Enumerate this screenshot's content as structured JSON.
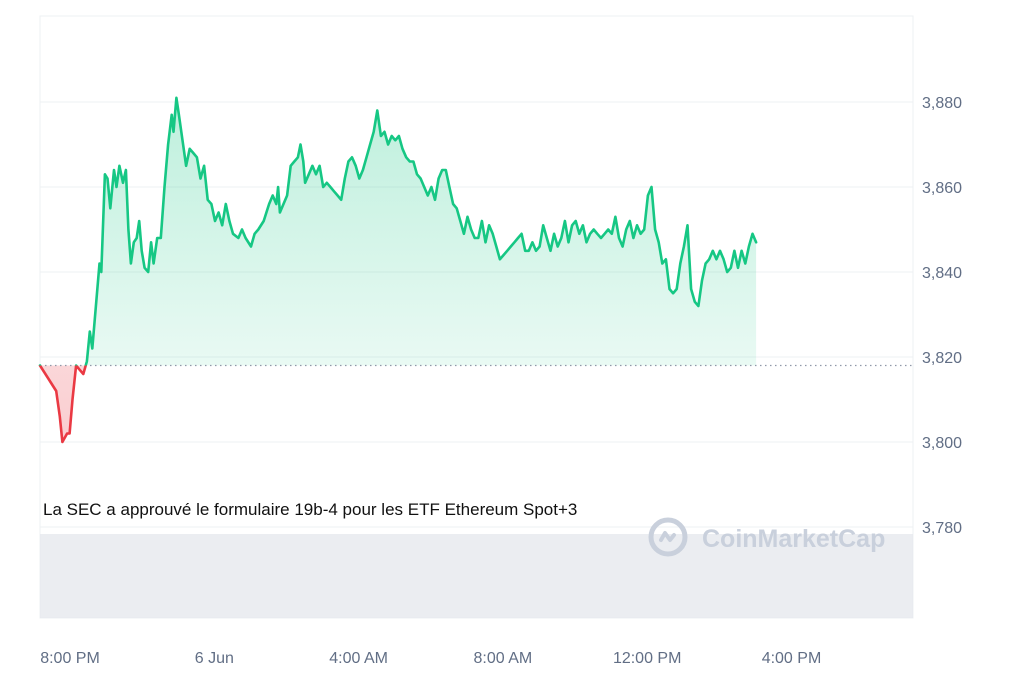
{
  "chart_data": {
    "type": "area",
    "reference_line": 3818,
    "ylim": [
      3760,
      3900
    ],
    "grid": true,
    "y_ticks": [
      "3,880",
      "3,860",
      "3,840",
      "3,820",
      "3,800",
      "3,780"
    ],
    "y_tick_values": [
      3880,
      3860,
      3840,
      3820,
      3800,
      3780
    ],
    "x_ticks": [
      "8:00 PM",
      "6 Jun",
      "4:00 AM",
      "8:00 AM",
      "12:00 PM",
      "4:00 PM"
    ],
    "x_tick_hours": [
      0,
      4,
      8,
      12,
      16,
      20
    ],
    "xlim_hours": [
      0,
      24.2
    ],
    "annotation": "La SEC a approuvé le formulaire 19b-4 pour les ETF Ethereum Spot+3",
    "watermark": "CoinMarketCap",
    "colors": {
      "up": "#16c784",
      "down": "#ea3943",
      "grid": "#eef0f3",
      "volume": "#e4e7ec"
    },
    "series": [
      {
        "values": [
          [
            0.0,
            3818
          ],
          [
            0.3,
            3814
          ],
          [
            0.45,
            3812
          ],
          [
            0.55,
            3806
          ],
          [
            0.62,
            3800
          ],
          [
            0.75,
            3802
          ],
          [
            0.82,
            3802
          ],
          [
            0.9,
            3810
          ],
          [
            1.0,
            3818
          ],
          [
            1.1,
            3817
          ],
          [
            1.2,
            3816
          ],
          [
            1.3,
            3819
          ],
          [
            1.38,
            3826
          ],
          [
            1.45,
            3822
          ],
          [
            1.55,
            3832
          ],
          [
            1.65,
            3842
          ],
          [
            1.7,
            3840
          ],
          [
            1.8,
            3863
          ],
          [
            1.87,
            3862
          ],
          [
            1.95,
            3855
          ],
          [
            2.05,
            3864
          ],
          [
            2.12,
            3860
          ],
          [
            2.2,
            3865
          ],
          [
            2.3,
            3861
          ],
          [
            2.38,
            3864
          ],
          [
            2.45,
            3850
          ],
          [
            2.52,
            3842
          ],
          [
            2.6,
            3847
          ],
          [
            2.68,
            3848
          ],
          [
            2.75,
            3852
          ],
          [
            2.82,
            3845
          ],
          [
            2.9,
            3841
          ],
          [
            3.0,
            3840
          ],
          [
            3.08,
            3847
          ],
          [
            3.15,
            3842
          ],
          [
            3.25,
            3848
          ],
          [
            3.35,
            3848
          ],
          [
            3.45,
            3860
          ],
          [
            3.55,
            3870
          ],
          [
            3.65,
            3877
          ],
          [
            3.7,
            3873
          ],
          [
            3.78,
            3881
          ],
          [
            3.85,
            3877
          ],
          [
            3.95,
            3871
          ],
          [
            4.05,
            3865
          ],
          [
            4.15,
            3869
          ],
          [
            4.25,
            3868
          ],
          [
            4.35,
            3867
          ],
          [
            4.45,
            3862
          ],
          [
            4.55,
            3865
          ],
          [
            4.65,
            3857
          ],
          [
            4.75,
            3856
          ],
          [
            4.85,
            3852
          ],
          [
            4.95,
            3854
          ],
          [
            5.05,
            3851
          ],
          [
            5.15,
            3856
          ],
          [
            5.25,
            3852
          ],
          [
            5.35,
            3849
          ],
          [
            5.5,
            3848
          ],
          [
            5.6,
            3850
          ],
          [
            5.7,
            3848
          ],
          [
            5.85,
            3846
          ],
          [
            5.95,
            3849
          ],
          [
            6.05,
            3850
          ],
          [
            6.2,
            3852
          ],
          [
            6.35,
            3856
          ],
          [
            6.45,
            3858
          ],
          [
            6.55,
            3856
          ],
          [
            6.6,
            3860
          ],
          [
            6.65,
            3854
          ],
          [
            6.75,
            3856
          ],
          [
            6.85,
            3858
          ],
          [
            6.95,
            3865
          ],
          [
            7.05,
            3866
          ],
          [
            7.15,
            3867
          ],
          [
            7.22,
            3870
          ],
          [
            7.3,
            3866
          ],
          [
            7.35,
            3861
          ],
          [
            7.45,
            3863
          ],
          [
            7.55,
            3865
          ],
          [
            7.65,
            3863
          ],
          [
            7.75,
            3865
          ],
          [
            7.85,
            3860
          ],
          [
            7.95,
            3861
          ],
          [
            8.05,
            3860
          ],
          [
            8.15,
            3859
          ],
          [
            8.25,
            3858
          ],
          [
            8.35,
            3857
          ],
          [
            8.45,
            3862
          ],
          [
            8.55,
            3866
          ],
          [
            8.65,
            3867
          ],
          [
            8.75,
            3865
          ],
          [
            8.85,
            3862
          ],
          [
            8.95,
            3864
          ],
          [
            9.05,
            3867
          ],
          [
            9.15,
            3870
          ],
          [
            9.25,
            3873
          ],
          [
            9.35,
            3878
          ],
          [
            9.45,
            3872
          ],
          [
            9.55,
            3873
          ],
          [
            9.65,
            3870
          ],
          [
            9.75,
            3872
          ],
          [
            9.85,
            3871
          ],
          [
            9.95,
            3872
          ],
          [
            10.05,
            3869
          ],
          [
            10.15,
            3867
          ],
          [
            10.25,
            3866
          ],
          [
            10.35,
            3866
          ],
          [
            10.45,
            3863
          ],
          [
            10.55,
            3862
          ],
          [
            10.65,
            3860
          ],
          [
            10.75,
            3858
          ],
          [
            10.85,
            3860
          ],
          [
            10.95,
            3857
          ],
          [
            11.05,
            3862
          ],
          [
            11.15,
            3864
          ],
          [
            11.25,
            3864
          ],
          [
            11.35,
            3860
          ],
          [
            11.45,
            3856
          ],
          [
            11.55,
            3855
          ],
          [
            11.65,
            3852
          ],
          [
            11.75,
            3849
          ],
          [
            11.85,
            3853
          ],
          [
            11.95,
            3850
          ],
          [
            12.05,
            3848
          ],
          [
            12.15,
            3848
          ],
          [
            12.25,
            3852
          ],
          [
            12.35,
            3847
          ],
          [
            12.45,
            3851
          ],
          [
            12.55,
            3849
          ],
          [
            12.65,
            3846
          ],
          [
            12.75,
            3843
          ],
          [
            12.85,
            3844
          ],
          [
            12.95,
            3845
          ],
          [
            13.05,
            3846
          ],
          [
            13.15,
            3847
          ],
          [
            13.25,
            3848
          ],
          [
            13.35,
            3849
          ],
          [
            13.45,
            3845
          ],
          [
            13.55,
            3845
          ],
          [
            13.65,
            3847
          ],
          [
            13.75,
            3845
          ],
          [
            13.85,
            3846
          ],
          [
            13.95,
            3851
          ],
          [
            14.05,
            3848
          ],
          [
            14.15,
            3845
          ],
          [
            14.25,
            3849
          ],
          [
            14.35,
            3846
          ],
          [
            14.45,
            3848
          ],
          [
            14.55,
            3852
          ],
          [
            14.65,
            3847
          ],
          [
            14.75,
            3851
          ],
          [
            14.85,
            3852
          ],
          [
            14.95,
            3849
          ],
          [
            15.05,
            3851
          ],
          [
            15.15,
            3847
          ],
          [
            15.25,
            3849
          ],
          [
            15.35,
            3850
          ],
          [
            15.45,
            3849
          ],
          [
            15.55,
            3848
          ],
          [
            15.65,
            3849
          ],
          [
            15.75,
            3850
          ],
          [
            15.85,
            3849
          ],
          [
            15.95,
            3853
          ],
          [
            16.05,
            3848
          ],
          [
            16.15,
            3846
          ],
          [
            16.25,
            3850
          ],
          [
            16.35,
            3852
          ],
          [
            16.45,
            3848
          ],
          [
            16.55,
            3851
          ],
          [
            16.65,
            3849
          ],
          [
            16.75,
            3850
          ],
          [
            16.85,
            3858
          ],
          [
            16.95,
            3860
          ],
          [
            17.05,
            3850
          ],
          [
            17.15,
            3847
          ],
          [
            17.25,
            3842
          ],
          [
            17.35,
            3843
          ],
          [
            17.45,
            3836
          ],
          [
            17.55,
            3835
          ],
          [
            17.65,
            3836
          ],
          [
            17.75,
            3842
          ],
          [
            17.85,
            3846
          ],
          [
            17.95,
            3851
          ],
          [
            18.05,
            3836
          ],
          [
            18.15,
            3833
          ],
          [
            18.25,
            3832
          ],
          [
            18.35,
            3838
          ],
          [
            18.45,
            3842
          ],
          [
            18.55,
            3843
          ],
          [
            18.65,
            3845
          ],
          [
            18.75,
            3843
          ],
          [
            18.85,
            3845
          ],
          [
            18.95,
            3843
          ],
          [
            19.05,
            3840
          ],
          [
            19.15,
            3841
          ],
          [
            19.25,
            3845
          ],
          [
            19.35,
            3841
          ],
          [
            19.45,
            3845
          ],
          [
            19.55,
            3842
          ],
          [
            19.65,
            3846
          ],
          [
            19.75,
            3849
          ],
          [
            19.85,
            3847
          ]
        ]
      }
    ]
  }
}
